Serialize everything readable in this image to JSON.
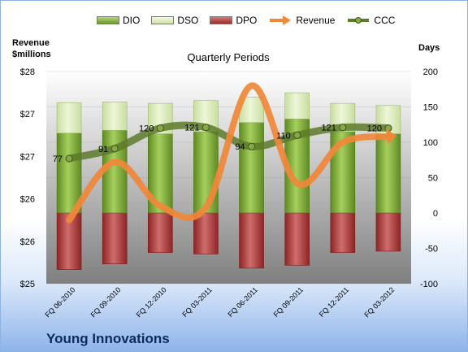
{
  "legend": {
    "dio": "DIO",
    "dso": "DSO",
    "dpo": "DPO",
    "revenue": "Revenue",
    "ccc": "CCC"
  },
  "company": "Young Innovations",
  "colors": {
    "dio": "#7aa832",
    "dso": "#d9eab0",
    "dpo": "#b03a3a",
    "revenue": "#f0883a",
    "ccc": "#5d7a2a"
  },
  "chart_data": {
    "type": "bar",
    "title": "Quarterly Periods",
    "left_axis_title": [
      "Revenue",
      "$millions"
    ],
    "right_axis_title": "Days",
    "categories": [
      "FQ 06-2010",
      "FQ 09-2010",
      "FQ 12-2010",
      "FQ 03-2011",
      "FQ 06-2011",
      "FQ 09-2011",
      "FQ 12-2011",
      "FQ 03-2012"
    ],
    "left_ticks": [
      "$28",
      "$27",
      "$27",
      "$26",
      "$26",
      "$25"
    ],
    "right_ticks": [
      "200",
      "150",
      "100",
      "50",
      "0",
      "-50",
      "-100"
    ],
    "right_ylim": [
      -100,
      200
    ],
    "series": [
      {
        "name": "DIO",
        "values": [
          113,
          117,
          112,
          115,
          128,
          133,
          115,
          112
        ]
      },
      {
        "name": "DSO",
        "values": [
          43,
          40,
          43,
          44,
          36,
          37,
          40,
          40
        ]
      },
      {
        "name": "DPO",
        "values": [
          -80,
          -72,
          -56,
          -58,
          -78,
          -74,
          -56,
          -54
        ]
      },
      {
        "name": "Revenue",
        "values": [
          -10,
          72,
          10,
          8,
          180,
          42,
          100,
          108
        ]
      },
      {
        "name": "CCC",
        "values": [
          77,
          91,
          120,
          121,
          94,
          110,
          121,
          120
        ]
      }
    ],
    "ccc_labels": [
      "77",
      "91",
      "120",
      "121",
      "94",
      "110",
      "121",
      "120"
    ]
  }
}
